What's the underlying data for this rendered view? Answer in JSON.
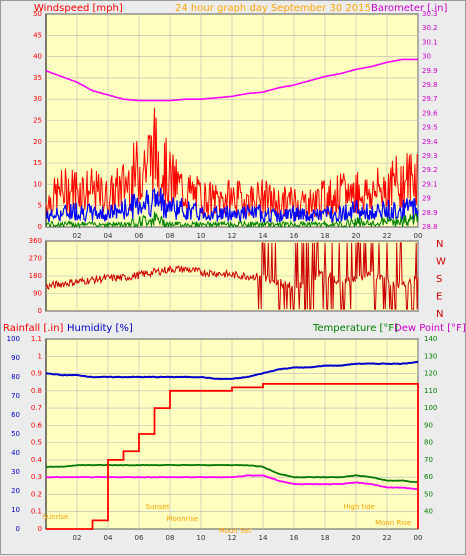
{
  "header": {
    "wind_title": "Windspeed [mph]",
    "center_title": "24 hour graph day September 30 2015",
    "baro_title": "Barometer [.in]"
  },
  "middle": {
    "compass": [
      "N",
      "W",
      "S",
      "E",
      "N"
    ]
  },
  "lower": {
    "rain_title": "Rainfall [.in]",
    "humidity_title": "Humidity [%]",
    "temp_title": "Temperature [°F]",
    "dew_title": "Dew Point [°F]",
    "annotations": [
      "Sunrise",
      "Sunset",
      "Moonrise",
      "Moon Set",
      "High tide",
      "Moon Rise"
    ]
  },
  "colors": {
    "plot_bg": "#ffffc0",
    "wind": "#ff0000",
    "gust_fill": "#ff0000",
    "avg_wind": "#0000ff",
    "low_wind": "#008000",
    "barometer": "#ff00ff",
    "direction": "#cc0000",
    "rain": "#ff0000",
    "humidity": "#0000cc",
    "temperature": "#007700",
    "dewpoint": "#ff00ff",
    "grid": "#b8b8b8",
    "title_orange": "#ffa500",
    "title_red": "#ff0000",
    "title_magenta": "#cc00cc",
    "title_blue": "#0000cc",
    "title_green": "#008000",
    "axis_text": "#333333",
    "compass_text": "#cc0000"
  },
  "chart_data": [
    {
      "type": "line",
      "name": "wind_barometer",
      "x_ticks": [
        "02",
        "04",
        "06",
        "08",
        "10",
        "12",
        "14",
        "16",
        "18",
        "20",
        "22",
        "00"
      ],
      "y_left": {
        "ylim": [
          0,
          50
        ],
        "ticks": [
          "0",
          "5",
          "10",
          "15",
          "20",
          "25",
          "30",
          "35",
          "40",
          "45",
          "50"
        ]
      },
      "y_right": {
        "ylim": [
          28.8,
          30.3
        ],
        "ticks": [
          "28.8",
          "28.9",
          "29",
          "29.1",
          "29.2",
          "29.3",
          "29.4",
          "29.5",
          "29.6",
          "29.7",
          "29.8",
          "29.9",
          "30",
          "30.1",
          "30.2",
          "30.3"
        ]
      },
      "hours": [
        0,
        1,
        2,
        3,
        4,
        5,
        6,
        7,
        8,
        9,
        10,
        11,
        12,
        13,
        14,
        15,
        16,
        17,
        18,
        19,
        20,
        21,
        22,
        23,
        24
      ],
      "gust": [
        8,
        12,
        13,
        12,
        10,
        14,
        19,
        25,
        16,
        12,
        10,
        9,
        10,
        9,
        10,
        8,
        9,
        8,
        10,
        11,
        12,
        11,
        14,
        15,
        18
      ],
      "avg_wind": [
        3,
        4,
        5,
        4,
        4,
        5,
        7,
        8,
        6,
        5,
        4,
        4,
        4,
        4,
        4,
        3,
        4,
        3,
        4,
        4,
        5,
        4,
        5,
        5,
        6
      ],
      "low_wind": [
        1,
        1,
        1,
        1,
        1,
        1,
        2,
        3,
        1,
        1,
        1,
        1,
        1,
        1,
        1,
        1,
        1,
        1,
        1,
        1,
        2,
        1,
        2,
        2,
        3
      ],
      "barometer": [
        29.9,
        29.86,
        29.82,
        29.76,
        29.73,
        29.7,
        29.69,
        29.69,
        29.69,
        29.7,
        29.7,
        29.71,
        29.72,
        29.74,
        29.75,
        29.78,
        29.8,
        29.83,
        29.86,
        29.88,
        29.91,
        29.93,
        29.96,
        29.98,
        29.98
      ]
    },
    {
      "type": "scatter",
      "name": "wind_direction",
      "x_ticks": [
        "02",
        "04",
        "06",
        "08",
        "10",
        "12",
        "14",
        "16",
        "18",
        "20",
        "22",
        "00"
      ],
      "ylim": [
        0,
        360
      ],
      "ticks": [
        "0",
        "90",
        "180",
        "270",
        "360"
      ],
      "hours": [
        0,
        1,
        2,
        3,
        4,
        5,
        6,
        7,
        8,
        9,
        10,
        11,
        12,
        13,
        14,
        15,
        16,
        17,
        18,
        19,
        20,
        21,
        22,
        23,
        24
      ],
      "direction": [
        125,
        140,
        150,
        160,
        170,
        170,
        185,
        200,
        215,
        215,
        200,
        195,
        185,
        180,
        175,
        150,
        120,
        160,
        200,
        140,
        170,
        190,
        150,
        130,
        170
      ]
    },
    {
      "type": "line",
      "name": "rain_humidity_temp",
      "x_ticks": [
        "02",
        "04",
        "06",
        "08",
        "10",
        "12",
        "14",
        "16",
        "18",
        "20",
        "22",
        "00"
      ],
      "y_rain": {
        "ylim": [
          0,
          1.1
        ],
        "ticks": [
          "0",
          "0.1",
          "0.2",
          "0.3",
          "0.4",
          "0.5",
          "0.6",
          "0.7",
          "0.8",
          "0.9",
          "1",
          "1.1"
        ]
      },
      "y_humidity": {
        "ylim": [
          0,
          100
        ],
        "ticks": [
          "0",
          "10",
          "20",
          "30",
          "40",
          "50",
          "60",
          "70",
          "80",
          "90",
          "100"
        ]
      },
      "y_temp": {
        "ylim": [
          30,
          140
        ],
        "ticks": [
          "40",
          "50",
          "60",
          "70",
          "80",
          "90",
          "100",
          "110",
          "120",
          "130",
          "140"
        ]
      },
      "hours": [
        0,
        1,
        2,
        3,
        4,
        5,
        6,
        7,
        8,
        9,
        10,
        11,
        12,
        13,
        14,
        15,
        16,
        17,
        18,
        19,
        20,
        21,
        22,
        23,
        24
      ],
      "rain": [
        0,
        0,
        0,
        0.05,
        0.4,
        0.45,
        0.55,
        0.7,
        0.8,
        0.8,
        0.8,
        0.8,
        0.82,
        0.82,
        0.84,
        0.84,
        0.84,
        0.84,
        0.84,
        0.84,
        0.84,
        0.84,
        0.84,
        0.84,
        0.84
      ],
      "humidity": [
        82,
        81,
        81,
        80,
        80,
        80,
        80,
        80,
        80,
        80,
        80,
        79,
        79,
        80,
        82,
        84,
        85,
        85,
        86,
        86,
        87,
        87,
        87,
        87,
        88
      ],
      "temperature": [
        66,
        66,
        67,
        67,
        67,
        67,
        67,
        67,
        67,
        67,
        67,
        67,
        67,
        67,
        66,
        62,
        60,
        60,
        60,
        60,
        61,
        60,
        58,
        58,
        57
      ],
      "dewpoint": [
        60,
        60,
        60,
        60,
        60,
        60,
        60,
        60,
        60,
        60,
        60,
        60,
        60,
        61,
        61,
        58,
        56,
        56,
        56,
        56,
        57,
        56,
        54,
        54,
        53
      ]
    }
  ]
}
